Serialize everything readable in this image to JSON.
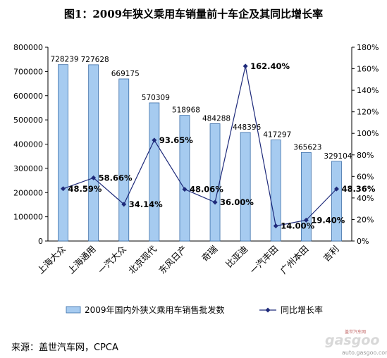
{
  "title": "图1：2009年狭义乘用车销量前十车企及其同比增长率",
  "source": "来源：盖世汽车网，CPCA",
  "watermark": {
    "cn": "盖世汽车网",
    "logo": "gasgoo",
    "url": "auto.gasgoo.com"
  },
  "chart_data": {
    "type": "bar",
    "categories": [
      "上海大众",
      "上海通用",
      "一汽大众",
      "北京现代",
      "东风日产",
      "奇瑞",
      "比亚迪",
      "一汽丰田",
      "广州本田",
      "吉利"
    ],
    "series": [
      {
        "name": "2009年国内外狭义乘用车销售批发数",
        "type": "bar",
        "axis": "left",
        "values": [
          728239,
          727628,
          669175,
          570309,
          518968,
          484288,
          448396,
          417297,
          365623,
          329104
        ],
        "labels": [
          "728239",
          "727628",
          "669175",
          "570309",
          "518968",
          "484288",
          "448396",
          "417297",
          "365623",
          "329104"
        ]
      },
      {
        "name": "同比增长率",
        "type": "line",
        "axis": "right",
        "values": [
          48.59,
          58.66,
          34.14,
          93.65,
          48.06,
          36.0,
          162.4,
          14.0,
          19.4,
          48.36
        ],
        "labels": [
          "48.59%",
          "58.66%",
          "34.14%",
          "93.65%",
          "48.06%",
          "36.00%",
          "162.40%",
          "14.00%",
          "19.40%",
          "48.36%"
        ]
      }
    ],
    "ylim_left": [
      0,
      800000
    ],
    "yticks_left": [
      "0",
      "100000",
      "200000",
      "300000",
      "400000",
      "500000",
      "600000",
      "700000",
      "800000"
    ],
    "ylim_right": [
      0,
      180
    ],
    "yticks_right": [
      "0%",
      "20%",
      "40%",
      "60%",
      "80%",
      "100%",
      "120%",
      "140%",
      "160%",
      "180%"
    ],
    "legend_position": "bottom",
    "colors": {
      "bar_fill": "#a6cbf0",
      "bar_stroke": "#3b6ea8",
      "line": "#1e2a7a"
    }
  }
}
